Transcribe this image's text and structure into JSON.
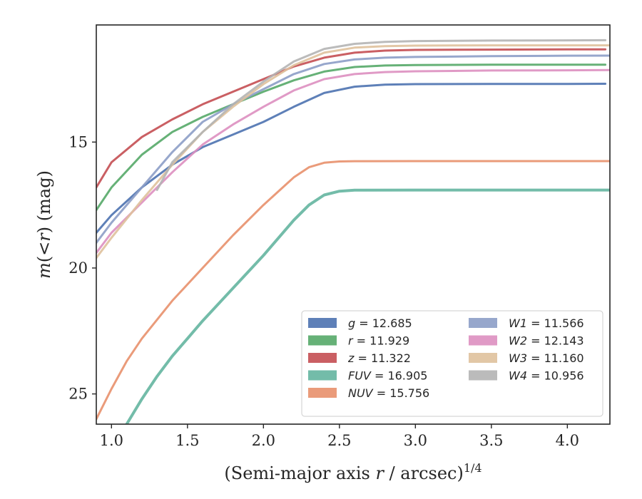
{
  "chart_data": {
    "type": "line",
    "title": "",
    "xlabel": "(Semi-major axis r / arcsec)^1/4",
    "xlabel_parts": {
      "prefix": "(Semi-major axis ",
      "var": "r",
      "suffix": " / arcsec)",
      "sup": "1/4"
    },
    "ylabel": "m(<r) (mag)",
    "ylabel_parts": {
      "m": "m",
      "open": "(",
      "lt": "<",
      "var": "r",
      "close": ")",
      "unit": " (mag)"
    },
    "xlim": [
      0.9,
      4.28
    ],
    "ylim": [
      26.2,
      10.35
    ],
    "y_inverted": true,
    "xticks": [
      1.0,
      1.5,
      2.0,
      2.5,
      3.0,
      3.5,
      4.0
    ],
    "xtick_labels": [
      "1.0",
      "1.5",
      "2.0",
      "2.5",
      "3.0",
      "3.5",
      "4.0"
    ],
    "yticks": [
      15,
      20,
      25
    ],
    "ytick_labels": [
      "15",
      "20",
      "25"
    ],
    "grid": false,
    "legend_position": "lower-right",
    "series": [
      {
        "band": "g",
        "value": "12.685",
        "color": "#4c72b0",
        "x": [
          0.9,
          1.0,
          1.2,
          1.4,
          1.6,
          1.8,
          2.0,
          2.2,
          2.4,
          2.6,
          2.8,
          3.0,
          3.5,
          4.0,
          4.25
        ],
        "y": [
          18.6,
          17.9,
          16.8,
          15.9,
          15.2,
          14.7,
          14.2,
          13.6,
          13.05,
          12.8,
          12.72,
          12.7,
          12.69,
          12.69,
          12.685
        ]
      },
      {
        "band": "r",
        "value": "11.929",
        "color": "#55a868",
        "x": [
          0.9,
          1.0,
          1.2,
          1.4,
          1.6,
          1.8,
          2.0,
          2.2,
          2.4,
          2.6,
          2.8,
          3.0,
          3.5,
          4.0,
          4.25
        ],
        "y": [
          17.7,
          16.8,
          15.5,
          14.6,
          14.0,
          13.5,
          13.0,
          12.55,
          12.2,
          12.02,
          11.96,
          11.94,
          11.93,
          11.93,
          11.929
        ]
      },
      {
        "band": "z",
        "value": "11.322",
        "color": "#c44e52",
        "x": [
          0.9,
          1.0,
          1.2,
          1.4,
          1.6,
          1.8,
          2.0,
          2.2,
          2.4,
          2.6,
          2.8,
          3.0,
          3.5,
          4.0,
          4.25
        ],
        "y": [
          16.8,
          15.8,
          14.8,
          14.1,
          13.5,
          13.0,
          12.5,
          12.0,
          11.65,
          11.45,
          11.37,
          11.34,
          11.33,
          11.32,
          11.322
        ]
      },
      {
        "band": "FUV",
        "value": "16.905",
        "color": "#64b5a0",
        "x": [
          1.1,
          1.2,
          1.3,
          1.4,
          1.5,
          1.6,
          1.8,
          2.0,
          2.2,
          2.3,
          2.4,
          2.5,
          2.6,
          3.0,
          4.28
        ],
        "y": [
          26.2,
          25.2,
          24.3,
          23.5,
          22.8,
          22.1,
          20.8,
          19.5,
          18.1,
          17.5,
          17.1,
          16.95,
          16.91,
          16.905,
          16.905
        ]
      },
      {
        "band": "NUV",
        "value": "15.756",
        "color": "#e8906c",
        "x": [
          0.9,
          1.0,
          1.1,
          1.2,
          1.4,
          1.6,
          1.8,
          2.0,
          2.2,
          2.3,
          2.4,
          2.5,
          2.6,
          3.0,
          4.28
        ],
        "y": [
          26.0,
          24.8,
          23.7,
          22.8,
          21.3,
          20.0,
          18.7,
          17.5,
          16.4,
          16.0,
          15.82,
          15.77,
          15.76,
          15.756,
          15.756
        ]
      },
      {
        "band": "W1",
        "value": "11.566",
        "color": "#8c9dc7",
        "x": [
          0.9,
          1.0,
          1.2,
          1.4,
          1.6,
          1.8,
          2.0,
          2.2,
          2.4,
          2.6,
          2.8,
          3.0,
          3.5,
          4.0,
          4.28
        ],
        "y": [
          19.0,
          18.2,
          16.8,
          15.4,
          14.2,
          13.5,
          12.9,
          12.3,
          11.9,
          11.72,
          11.65,
          11.62,
          11.59,
          11.57,
          11.566
        ]
      },
      {
        "band": "W2",
        "value": "12.143",
        "color": "#dd8fc0",
        "x": [
          0.9,
          1.0,
          1.2,
          1.4,
          1.6,
          1.8,
          2.0,
          2.2,
          2.4,
          2.6,
          2.8,
          3.0,
          3.5,
          4.0,
          4.28
        ],
        "y": [
          19.4,
          18.6,
          17.4,
          16.2,
          15.1,
          14.3,
          13.6,
          12.95,
          12.5,
          12.3,
          12.22,
          12.19,
          12.16,
          12.15,
          12.143
        ]
      },
      {
        "band": "W3",
        "value": "11.160",
        "color": "#dfc19c",
        "x": [
          0.9,
          1.0,
          1.2,
          1.4,
          1.6,
          1.8,
          2.0,
          2.2,
          2.4,
          2.6,
          2.8,
          3.0,
          3.5,
          4.0,
          4.28
        ],
        "y": [
          19.6,
          18.8,
          17.3,
          15.9,
          14.6,
          13.6,
          12.7,
          11.95,
          11.45,
          11.25,
          11.19,
          11.17,
          11.16,
          11.16,
          11.16
        ]
      },
      {
        "band": "W4",
        "value": "10.956",
        "color": "#b4b4b4",
        "x": [
          1.3,
          1.4,
          1.6,
          1.8,
          2.0,
          2.2,
          2.4,
          2.6,
          2.8,
          3.0,
          3.5,
          4.0,
          4.25
        ],
        "y": [
          16.9,
          15.8,
          14.6,
          13.5,
          12.6,
          11.8,
          11.3,
          11.1,
          11.02,
          10.99,
          10.97,
          10.96,
          10.956
        ]
      }
    ]
  }
}
